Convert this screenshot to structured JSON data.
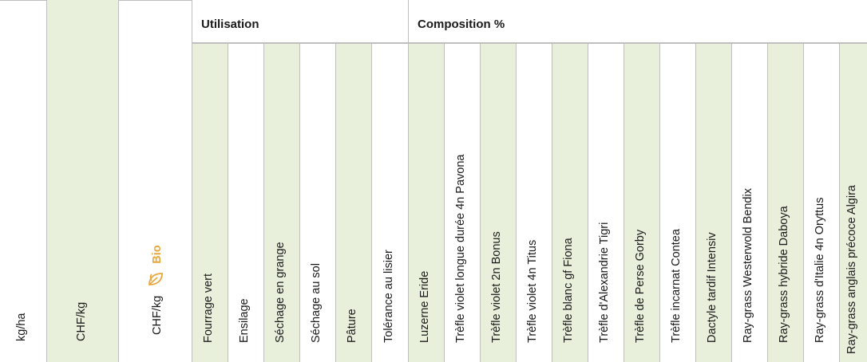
{
  "header_columns": [
    {
      "label": "kg/ha"
    },
    {
      "label": "CHF/kg"
    },
    {
      "label": "CHF/kg",
      "badge": "Bio",
      "badge_color": "#e8a63a",
      "icon": "leaf-icon"
    }
  ],
  "groups": [
    {
      "title": "Utilisation",
      "columns": [
        "Fourrage vert",
        "Ensilage",
        "Séchage en grange",
        "Séchage au sol",
        "Pâture",
        "Tolérance au lisier"
      ]
    },
    {
      "title": "Composition %",
      "columns": [
        "Luzerne Eride",
        "Trèfle violet longue durée 4n Pavona",
        "Trèfle violet 2n Bonus",
        "Trèfle violet 4n Titus",
        "Trèfle blanc gf Fiona",
        "Trèfle d'Alexandrie Tigri",
        "Trèfle de Perse Gorby",
        "Trèfle incarnat Contea",
        "Dactyle tardif Intensiv",
        "Ray-grass Westerwold Bendix",
        "Ray-grass hybride Daboya",
        "Ray-grass d'Italie 4n Oryttus",
        "Ray-grass anglais précoce Algira"
      ]
    }
  ],
  "colors": {
    "green": "#e8f0dc",
    "border": "#bfbfbf",
    "bio": "#e8a63a"
  }
}
